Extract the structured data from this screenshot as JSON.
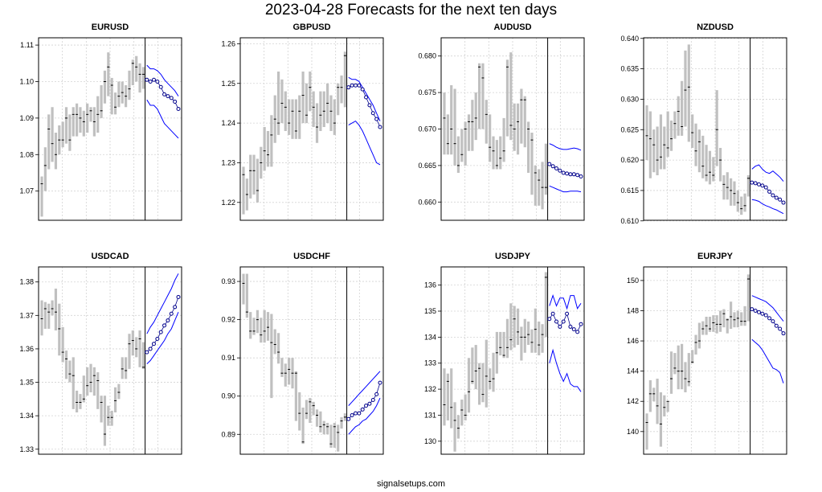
{
  "title": "2023-04-28 Forecasts for the next ten days",
  "footer": "signalsetups.com",
  "colors": {
    "history_bars": "#c0c0c0",
    "forecast_band": "#0000ff",
    "forecast_points": "#00008b",
    "grid": "#d3d3d3"
  },
  "chart_data": [
    {
      "type": "line",
      "title": "EURUSD",
      "ylim": [
        1.062,
        1.112
      ],
      "yticks": [
        "1.07",
        "1.08",
        "1.09",
        "1.10",
        "1.11"
      ],
      "grid": true,
      "history_days": 30,
      "forecast_days": 10,
      "history_close": [
        1.072,
        1.077,
        1.087,
        1.083,
        1.08,
        1.084,
        1.084,
        1.09,
        1.084,
        1.091,
        1.091,
        1.09,
        1.089,
        1.091,
        1.092,
        1.089,
        1.091,
        1.092,
        1.1,
        1.104,
        1.099,
        1.093,
        1.096,
        1.097,
        1.096,
        1.098,
        1.105,
        1.104,
        1.102,
        1.102
      ],
      "history_high": [
        1.074,
        1.082,
        1.091,
        1.093,
        1.086,
        1.088,
        1.089,
        1.093,
        1.091,
        1.093,
        1.094,
        1.093,
        1.092,
        1.094,
        1.093,
        1.093,
        1.096,
        1.099,
        1.103,
        1.108,
        1.101,
        1.097,
        1.1,
        1.1,
        1.099,
        1.103,
        1.106,
        1.107,
        1.105,
        1.104
      ],
      "history_low": [
        1.063,
        1.07,
        1.076,
        1.078,
        1.076,
        1.08,
        1.082,
        1.083,
        1.081,
        1.085,
        1.085,
        1.086,
        1.085,
        1.086,
        1.089,
        1.085,
        1.086,
        1.09,
        1.094,
        1.096,
        1.091,
        1.091,
        1.093,
        1.094,
        1.093,
        1.095,
        1.099,
        1.1,
        1.097,
        1.098
      ],
      "forecast": [
        1.1005,
        1.1,
        1.1005,
        1.1,
        1.0985,
        1.0965,
        1.096,
        1.0955,
        1.0945,
        1.0925
      ],
      "upper": [
        1.1045,
        1.1035,
        1.1035,
        1.103,
        1.102,
        1.1005,
        1.0995,
        1.0985,
        1.0975,
        1.096
      ],
      "lower": [
        1.095,
        1.0935,
        1.0935,
        1.0925,
        1.0905,
        1.0885,
        1.0875,
        1.0865,
        1.0855,
        1.0845
      ]
    },
    {
      "type": "line",
      "title": "GBPUSD",
      "ylim": [
        1.2155,
        1.2615
      ],
      "yticks": [
        "1.22",
        "1.23",
        "1.24",
        "1.25",
        "1.26"
      ],
      "grid": true,
      "history_days": 30,
      "forecast_days": 10,
      "history_close": [
        1.227,
        1.222,
        1.228,
        1.228,
        1.223,
        1.23,
        1.233,
        1.232,
        1.237,
        1.241,
        1.24,
        1.245,
        1.244,
        1.24,
        1.243,
        1.238,
        1.243,
        1.247,
        1.242,
        1.249,
        1.244,
        1.239,
        1.242,
        1.243,
        1.245,
        1.243,
        1.24,
        1.249,
        1.249,
        1.257
      ],
      "history_high": [
        1.229,
        1.226,
        1.232,
        1.232,
        1.231,
        1.234,
        1.239,
        1.238,
        1.242,
        1.247,
        1.253,
        1.251,
        1.248,
        1.246,
        1.246,
        1.246,
        1.247,
        1.253,
        1.25,
        1.253,
        1.248,
        1.245,
        1.248,
        1.248,
        1.25,
        1.247,
        1.246,
        1.25,
        1.252,
        1.258
      ],
      "history_low": [
        1.217,
        1.218,
        1.221,
        1.222,
        1.22,
        1.226,
        1.228,
        1.229,
        1.229,
        1.235,
        1.237,
        1.24,
        1.238,
        1.237,
        1.236,
        1.236,
        1.236,
        1.24,
        1.24,
        1.243,
        1.239,
        1.235,
        1.238,
        1.239,
        1.24,
        1.238,
        1.237,
        1.242,
        1.245,
        1.244
      ],
      "forecast": [
        1.249,
        1.2495,
        1.2495,
        1.2495,
        1.2485,
        1.2465,
        1.2445,
        1.2425,
        1.241,
        1.239
      ],
      "upper": [
        1.2515,
        1.251,
        1.251,
        1.2505,
        1.249,
        1.2475,
        1.246,
        1.2445,
        1.2425,
        1.2405
      ],
      "lower": [
        1.2395,
        1.24,
        1.2405,
        1.2395,
        1.238,
        1.236,
        1.234,
        1.232,
        1.23,
        1.2295
      ]
    },
    {
      "type": "line",
      "title": "AUDUSD",
      "ylim": [
        0.6575,
        0.6825
      ],
      "yticks": [
        "0.660",
        "0.665",
        "0.670",
        "0.675",
        "0.680"
      ],
      "grid": true,
      "history_days": 30,
      "forecast_days": 10,
      "history_close": [
        0.6715,
        0.668,
        0.67,
        0.668,
        0.665,
        0.6665,
        0.67,
        0.671,
        0.671,
        0.6715,
        0.6785,
        0.677,
        0.672,
        0.6675,
        0.667,
        0.665,
        0.666,
        0.667,
        0.6785,
        0.6705,
        0.67,
        0.671,
        0.674,
        0.674,
        0.67,
        0.6685,
        0.664,
        0.663,
        0.662,
        0.662
      ],
      "history_high": [
        0.675,
        0.672,
        0.676,
        0.6755,
        0.669,
        0.67,
        0.671,
        0.672,
        0.674,
        0.675,
        0.679,
        0.679,
        0.674,
        0.672,
        0.669,
        0.6685,
        0.669,
        0.6715,
        0.6795,
        0.6805,
        0.6735,
        0.6735,
        0.6755,
        0.6745,
        0.671,
        0.6695,
        0.665,
        0.6645,
        0.6655,
        0.668
      ],
      "history_low": [
        0.6665,
        0.6665,
        0.6665,
        0.665,
        0.664,
        0.6655,
        0.665,
        0.667,
        0.667,
        0.6685,
        0.67,
        0.67,
        0.668,
        0.6655,
        0.6645,
        0.6645,
        0.6645,
        0.6655,
        0.669,
        0.6685,
        0.667,
        0.6665,
        0.668,
        0.6675,
        0.664,
        0.661,
        0.6595,
        0.6595,
        0.659,
        0.661
      ],
      "forecast": [
        0.6652,
        0.6649,
        0.6646,
        0.6643,
        0.664,
        0.6639,
        0.6638,
        0.6638,
        0.6637,
        0.6635
      ],
      "upper": [
        0.668,
        0.6678,
        0.6675,
        0.6673,
        0.6672,
        0.6672,
        0.6673,
        0.6674,
        0.6673,
        0.6671
      ],
      "lower": [
        0.6622,
        0.662,
        0.6618,
        0.6616,
        0.6614,
        0.6614,
        0.6615,
        0.6615,
        0.6615,
        0.6614
      ]
    },
    {
      "type": "line",
      "title": "NZDUSD",
      "ylim": [
        0.6101,
        0.6401
      ],
      "yticks": [
        "0.610",
        "0.615",
        "0.620",
        "0.625",
        "0.630",
        "0.635",
        "0.640"
      ],
      "grid": true,
      "history_days": 30,
      "forecast_days": 10,
      "history_close": [
        0.624,
        0.6235,
        0.6225,
        0.62,
        0.6205,
        0.6225,
        0.622,
        0.6235,
        0.626,
        0.628,
        0.6255,
        0.6315,
        0.632,
        0.6245,
        0.6215,
        0.623,
        0.619,
        0.6175,
        0.618,
        0.6175,
        0.625,
        0.62,
        0.616,
        0.6155,
        0.615,
        0.6145,
        0.613,
        0.612,
        0.6125,
        0.617
      ],
      "history_high": [
        0.629,
        0.628,
        0.625,
        0.6255,
        0.6275,
        0.6255,
        0.628,
        0.6265,
        0.628,
        0.6305,
        0.633,
        0.638,
        0.639,
        0.6275,
        0.626,
        0.625,
        0.624,
        0.6225,
        0.6215,
        0.6205,
        0.6315,
        0.622,
        0.6175,
        0.618,
        0.617,
        0.6165,
        0.615,
        0.614,
        0.6145,
        0.6175
      ],
      "history_low": [
        0.62,
        0.617,
        0.618,
        0.6175,
        0.6185,
        0.6185,
        0.6205,
        0.6215,
        0.6235,
        0.624,
        0.624,
        0.6255,
        0.623,
        0.622,
        0.619,
        0.618,
        0.617,
        0.6165,
        0.616,
        0.6165,
        0.619,
        0.6165,
        0.6135,
        0.6135,
        0.6125,
        0.6125,
        0.6115,
        0.611,
        0.6115,
        0.614
      ],
      "forecast": [
        0.6163,
        0.6162,
        0.616,
        0.6158,
        0.6155,
        0.6148,
        0.6142,
        0.6138,
        0.6135,
        0.613
      ],
      "upper": [
        0.6185,
        0.619,
        0.6192,
        0.6185,
        0.618,
        0.6178,
        0.6182,
        0.6177,
        0.6172,
        0.6165
      ],
      "lower": [
        0.6135,
        0.6134,
        0.6132,
        0.6128,
        0.6125,
        0.6123,
        0.612,
        0.6118,
        0.6115,
        0.6112
      ]
    },
    {
      "type": "line",
      "title": "USDCAD",
      "ylim": [
        1.3285,
        1.3845
      ],
      "yticks": [
        "1.33",
        "1.34",
        "1.35",
        "1.36",
        "1.37",
        "1.38"
      ],
      "grid": true,
      "history_days": 30,
      "forecast_days": 10,
      "history_close": [
        1.369,
        1.372,
        1.371,
        1.372,
        1.371,
        1.366,
        1.359,
        1.357,
        1.3525,
        1.352,
        1.344,
        1.344,
        1.345,
        1.349,
        1.35,
        1.352,
        1.3505,
        1.344,
        1.3345,
        1.3395,
        1.3395,
        1.3445,
        1.347,
        1.354,
        1.3535,
        1.3615,
        1.3625,
        1.36,
        1.363,
        1.3545
      ],
      "history_high": [
        1.3745,
        1.374,
        1.3735,
        1.3745,
        1.378,
        1.3735,
        1.3665,
        1.3595,
        1.3565,
        1.3575,
        1.3475,
        1.3465,
        1.352,
        1.3545,
        1.3555,
        1.3545,
        1.353,
        1.346,
        1.346,
        1.343,
        1.3415,
        1.3485,
        1.3495,
        1.3575,
        1.3575,
        1.3645,
        1.3655,
        1.3635,
        1.3655,
        1.362
      ],
      "history_low": [
        1.364,
        1.366,
        1.366,
        1.37,
        1.3655,
        1.358,
        1.356,
        1.351,
        1.35,
        1.342,
        1.341,
        1.342,
        1.344,
        1.346,
        1.347,
        1.346,
        1.342,
        1.338,
        1.331,
        1.337,
        1.337,
        1.341,
        1.345,
        1.351,
        1.351,
        1.354,
        1.358,
        1.3575,
        1.3545,
        1.354
      ],
      "forecast": [
        1.359,
        1.36,
        1.3615,
        1.363,
        1.365,
        1.367,
        1.3685,
        1.3705,
        1.3725,
        1.3755
      ],
      "upper": [
        1.3645,
        1.3665,
        1.368,
        1.37,
        1.372,
        1.374,
        1.376,
        1.378,
        1.3805,
        1.3825
      ],
      "lower": [
        1.3555,
        1.3565,
        1.358,
        1.3595,
        1.361,
        1.3625,
        1.3645,
        1.366,
        1.3685,
        1.371
      ]
    },
    {
      "type": "line",
      "title": "USDCHF",
      "ylim": [
        0.8848,
        0.9338
      ],
      "yticks": [
        "0.89",
        "0.90",
        "0.91",
        "0.92",
        "0.93"
      ],
      "grid": true,
      "history_days": 30,
      "forecast_days": 10,
      "history_close": [
        0.9295,
        0.922,
        0.917,
        0.917,
        0.92,
        0.916,
        0.917,
        0.918,
        0.914,
        0.9135,
        0.9115,
        0.906,
        0.906,
        0.907,
        0.906,
        0.906,
        0.8955,
        0.888,
        0.8955,
        0.8985,
        0.8975,
        0.895,
        0.892,
        0.8925,
        0.892,
        0.8875,
        0.892,
        0.8905,
        0.8935,
        0.8945
      ],
      "history_high": [
        0.932,
        0.932,
        0.922,
        0.9205,
        0.9225,
        0.9205,
        0.9225,
        0.922,
        0.9215,
        0.9175,
        0.9165,
        0.91,
        0.9085,
        0.91,
        0.91,
        0.9065,
        0.901,
        0.897,
        0.899,
        0.8995,
        0.8985,
        0.8965,
        0.896,
        0.8935,
        0.893,
        0.8925,
        0.893,
        0.8925,
        0.8945,
        0.8955
      ],
      "history_low": [
        0.924,
        0.9205,
        0.915,
        0.916,
        0.9165,
        0.914,
        0.914,
        0.9145,
        0.8995,
        0.911,
        0.9085,
        0.905,
        0.9025,
        0.903,
        0.902,
        0.8935,
        0.891,
        0.8875,
        0.894,
        0.893,
        0.895,
        0.892,
        0.8905,
        0.89,
        0.89,
        0.8865,
        0.8865,
        0.8855,
        0.8915,
        0.8935
      ],
      "forecast": [
        0.894,
        0.895,
        0.8955,
        0.8955,
        0.8965,
        0.8975,
        0.898,
        0.899,
        0.9005,
        0.9035
      ],
      "upper": [
        0.8975,
        0.8985,
        0.8995,
        0.9005,
        0.9015,
        0.9025,
        0.9035,
        0.9045,
        0.9055,
        0.9065
      ],
      "lower": [
        0.89,
        0.891,
        0.892,
        0.8925,
        0.8935,
        0.894,
        0.895,
        0.896,
        0.8975,
        0.8995
      ]
    },
    {
      "type": "line",
      "title": "USDJPY",
      "ylim": [
        129.5,
        136.7
      ],
      "yticks": [
        "130",
        "131",
        "132",
        "133",
        "134",
        "135",
        "136"
      ],
      "grid": true,
      "history_days": 30,
      "forecast_days": 10,
      "history_close": [
        131.4,
        132.3,
        131.3,
        130.8,
        130.5,
        131.2,
        131.0,
        131.9,
        132.3,
        132.7,
        132.8,
        131.8,
        132.5,
        132.3,
        132.4,
        133.4,
        133.6,
        133.3,
        133.6,
        133.9,
        134.7,
        134.2,
        134.0,
        134.0,
        134.1,
        133.8,
        134.3,
        133.7,
        134.1,
        136.3
      ],
      "history_high": [
        132.8,
        132.6,
        132.8,
        131.5,
        131.0,
        131.6,
        131.8,
        133.2,
        133.6,
        133.7,
        133.0,
        133.0,
        133.9,
        132.8,
        133.4,
        134.2,
        134.2,
        134.2,
        134.7,
        135.3,
        135.2,
        135.1,
        134.4,
        134.7,
        134.6,
        134.3,
        135.1,
        134.6,
        134.5,
        136.5
      ],
      "history_low": [
        130.6,
        130.8,
        130.5,
        129.6,
        130.1,
        130.6,
        130.8,
        131.1,
        132.2,
        132.0,
        131.4,
        131.5,
        131.3,
        132.0,
        131.9,
        132.6,
        133.3,
        133.2,
        133.2,
        133.5,
        133.6,
        133.7,
        133.1,
        133.4,
        133.7,
        133.4,
        133.4,
        133.3,
        133.4,
        134.0
      ],
      "forecast": [
        134.7,
        134.9,
        134.6,
        134.4,
        134.6,
        134.9,
        134.4,
        134.3,
        134.2,
        134.5
      ],
      "upper": [
        135.2,
        135.6,
        135.2,
        135.5,
        135.5,
        135.1,
        135.6,
        135.6,
        135.1,
        135.3
      ],
      "lower": [
        133.0,
        133.5,
        133.0,
        132.6,
        132.3,
        132.6,
        132.2,
        132.1,
        132.1,
        131.9
      ]
    },
    {
      "type": "line",
      "title": "EURJPY",
      "ylim": [
        138.5,
        150.9
      ],
      "yticks": [
        "140",
        "142",
        "144",
        "146",
        "148",
        "150"
      ],
      "grid": true,
      "history_days": 30,
      "forecast_days": 10,
      "history_close": [
        140.6,
        142.5,
        142.5,
        141.7,
        140.5,
        141.6,
        142.0,
        143.5,
        144.2,
        144.0,
        144.0,
        143.5,
        143.3,
        144.6,
        145.9,
        146.0,
        146.8,
        147.0,
        146.8,
        147.2,
        147.1,
        147.1,
        147.8,
        147.4,
        147.6,
        147.4,
        147.5,
        147.3,
        147.3,
        150.1
      ],
      "history_high": [
        141.2,
        143.4,
        142.9,
        143.5,
        142.6,
        142.4,
        142.0,
        145.3,
        145.2,
        145.7,
        145.8,
        144.6,
        145.2,
        145.4,
        146.4,
        147.2,
        147.3,
        147.6,
        147.6,
        147.7,
        147.7,
        148.0,
        148.1,
        147.5,
        148.6,
        147.9,
        148.0,
        147.9,
        148.3,
        150.4
      ],
      "history_low": [
        138.8,
        141.3,
        142.0,
        140.5,
        139.0,
        141.0,
        141.3,
        142.5,
        143.8,
        142.8,
        142.8,
        142.6,
        143.0,
        144.5,
        145.1,
        145.5,
        146.4,
        146.4,
        146.6,
        146.6,
        146.5,
        146.6,
        146.9,
        146.5,
        146.8,
        146.9,
        146.9,
        147.0,
        147.0,
        147.3
      ],
      "forecast": [
        148.1,
        148.0,
        147.9,
        147.8,
        147.7,
        147.5,
        147.3,
        147.0,
        146.8,
        146.5
      ],
      "upper": [
        149.0,
        148.9,
        148.8,
        148.7,
        148.6,
        148.4,
        148.2,
        147.9,
        147.6,
        147.3
      ],
      "lower": [
        146.1,
        145.9,
        145.7,
        145.4,
        145.0,
        144.6,
        144.2,
        144.1,
        143.9,
        143.2
      ]
    }
  ]
}
